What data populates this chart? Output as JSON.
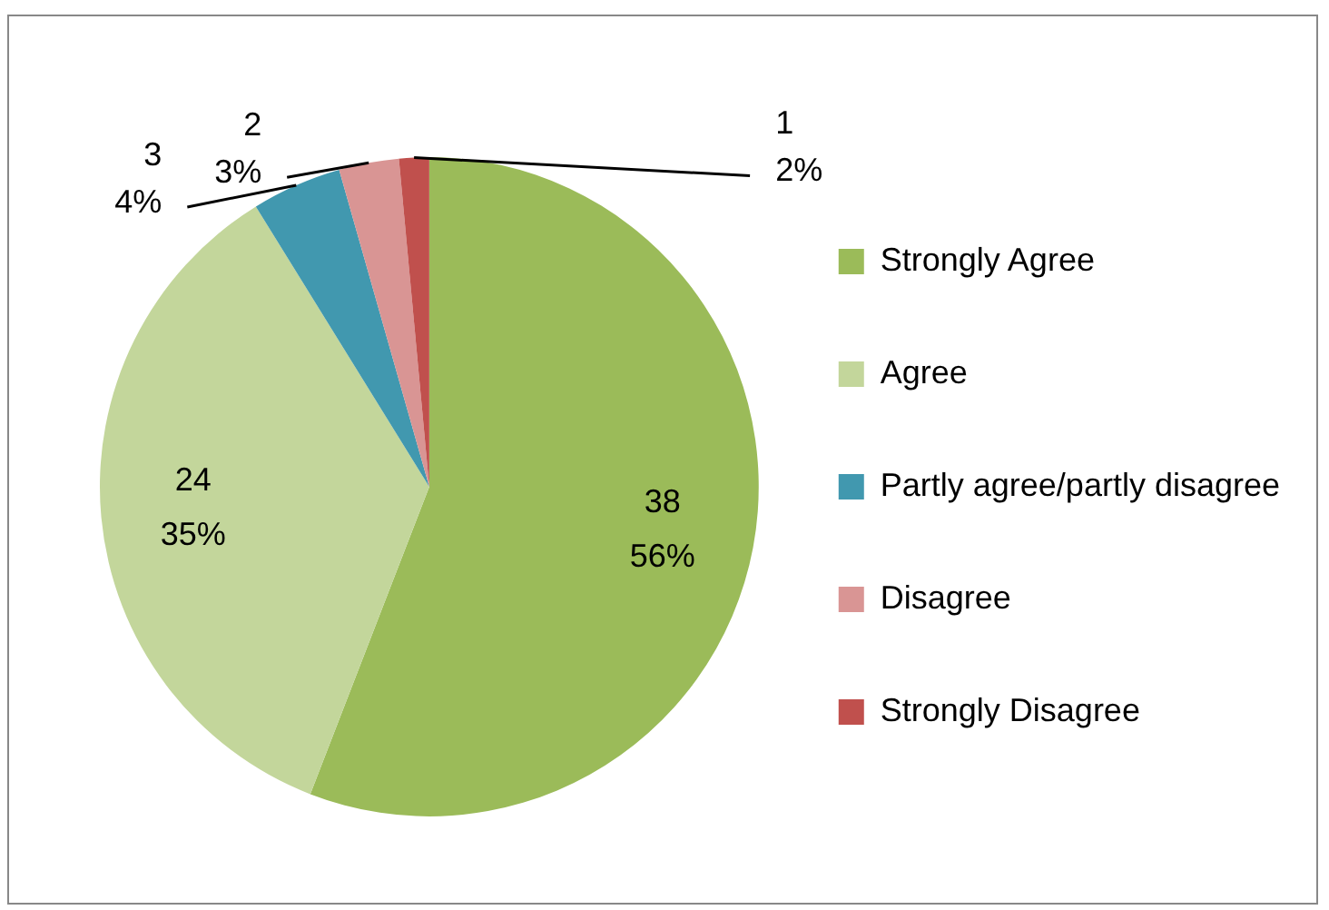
{
  "chart_data": {
    "type": "pie",
    "categories": [
      "Strongly Agree",
      "Agree",
      "Partly agree/partly disagree",
      "Disagree",
      "Strongly Disagree"
    ],
    "values": [
      38,
      24,
      3,
      2,
      1
    ],
    "colors": [
      "#9bbb59",
      "#c3d69b",
      "#4198af",
      "#d99594",
      "#c0504d"
    ],
    "value_labels": [
      "38\n56%",
      "24\n35%",
      "3\n4%",
      "2\n3%",
      "1\n2%"
    ],
    "legend": "right"
  }
}
